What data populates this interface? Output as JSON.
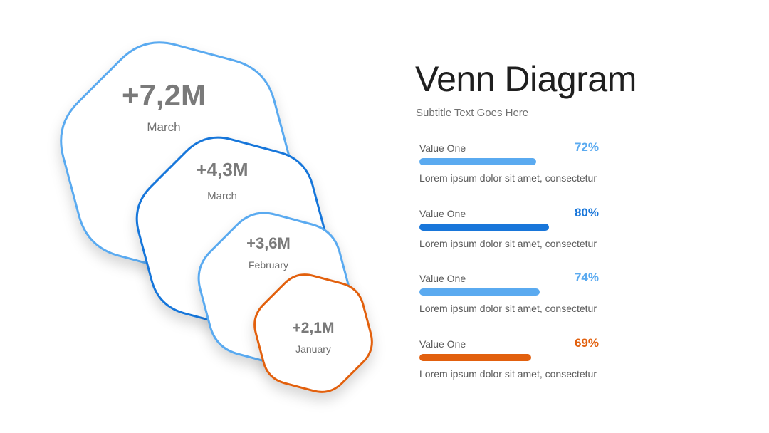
{
  "header": {
    "title": "Venn Diagram",
    "subtitle": "Subtitle Text Goes Here"
  },
  "shapes": [
    {
      "value": "+7,2M",
      "label": "March",
      "color": "#5AAAF0"
    },
    {
      "value": "+4,3M",
      "label": "March",
      "color": "#1876DA"
    },
    {
      "value": "+3,6M",
      "label": "February",
      "color": "#5AAAF0"
    },
    {
      "value": "+2,1M",
      "label": "January",
      "color": "#E2600E"
    }
  ],
  "metrics": [
    {
      "label": "Value One",
      "percent": "72%",
      "fill": 0.72,
      "color": "#5AAAF0",
      "description": "Lorem ipsum dolor sit amet, consectetur"
    },
    {
      "label": "Value One",
      "percent": "80%",
      "fill": 0.8,
      "color": "#1876DA",
      "description": "Lorem ipsum dolor sit amet, consectetur"
    },
    {
      "label": "Value One",
      "percent": "74%",
      "fill": 0.74,
      "color": "#5AAAF0",
      "description": "Lorem ipsum dolor sit amet, consectetur"
    },
    {
      "label": "Value One",
      "percent": "69%",
      "fill": 0.69,
      "color": "#E2600E",
      "description": "Lorem ipsum dolor sit amet, consectetur"
    }
  ]
}
